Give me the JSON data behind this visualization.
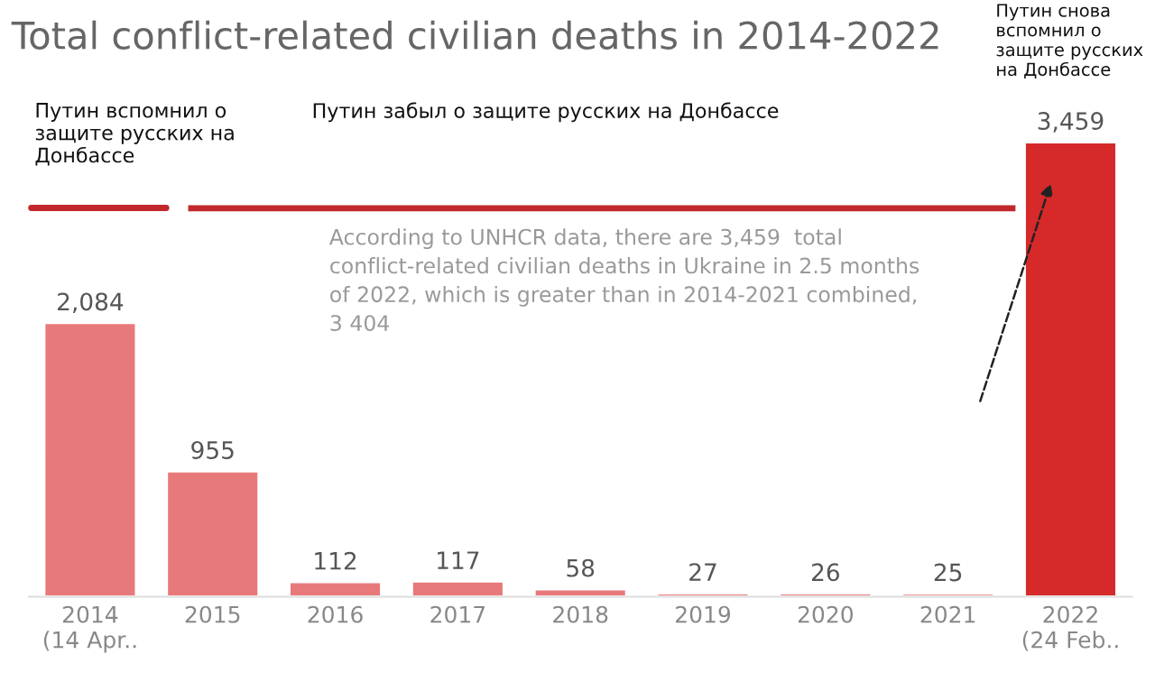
{
  "chart_data": {
    "type": "bar",
    "title": "Total conflict-related civilian deaths in 2014-2022",
    "categories": [
      "2014\n(14 Apr..",
      "2015",
      "2016",
      "2017",
      "2018",
      "2019",
      "2020",
      "2021",
      "2022\n(24 Feb.."
    ],
    "values": [
      2084,
      955,
      112,
      117,
      58,
      27,
      26,
      25,
      3459
    ],
    "colors": [
      "#e8797b",
      "#e8797b",
      "#e8797b",
      "#e8797b",
      "#e8797b",
      "#e8797b",
      "#e8797b",
      "#e8797b",
      "#d62a2a"
    ],
    "value_labels": [
      "2,084",
      "955",
      "112",
      "117",
      "58",
      "27",
      "26",
      "25",
      "3,459"
    ],
    "annotations": [
      "Путин вспомнил о\nзащите русских на\nДонбассе",
      "Путин забыл о защите русских на Донбассе",
      "According to UNHCR data, there are 3,459  total\nconflict-related civilian deaths in Ukraine in 2.5 months\nof 2022, which is greater than in 2014-2021 combined,\n3 404",
      "Путин снова\nвспомнил о\nзащите русских\nна Донбассе"
    ],
    "grid": false,
    "legend": false
  }
}
